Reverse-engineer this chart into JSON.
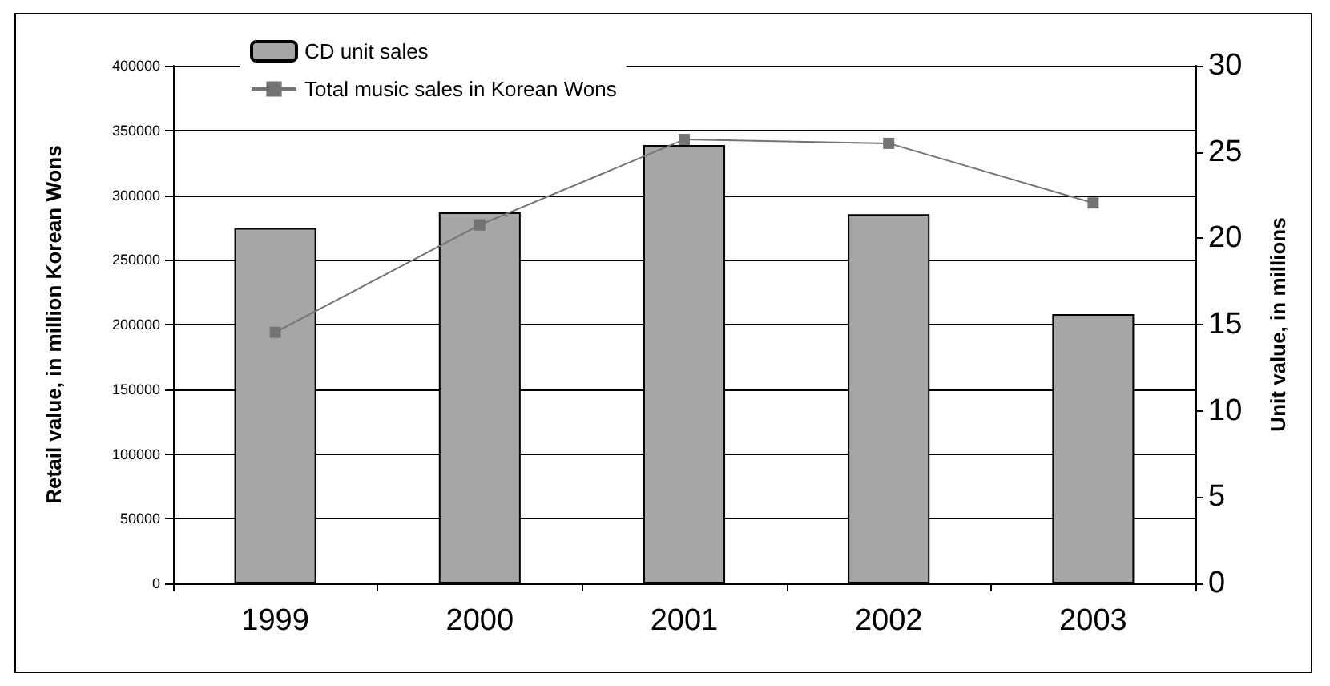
{
  "chart_data": {
    "type": "bar",
    "categories": [
      "1999",
      "2000",
      "2001",
      "2002",
      "2003"
    ],
    "series": [
      {
        "name": "CD unit sales",
        "axis": "y2",
        "color": "#a6a6a6",
        "values": [
          20.6,
          21.5,
          25.4,
          21.4,
          15.6
        ]
      },
      {
        "name": "Total music sales in Korean Wons",
        "type": "line",
        "axis": "y",
        "color": "#737373",
        "marker": "square",
        "values": [
          194000,
          277000,
          343000,
          340000,
          294000
        ]
      }
    ],
    "ylabel": "Retail value, in million Korean Wons",
    "y2label": "Unit value, in millions",
    "ylim": [
      0,
      400000
    ],
    "yticks": [
      0,
      50000,
      100000,
      150000,
      200000,
      250000,
      300000,
      350000,
      400000
    ],
    "y2lim": [
      0,
      30
    ],
    "y2ticks": [
      0,
      5,
      10,
      15,
      20,
      25,
      30
    ],
    "grid": "y",
    "legend": "top left"
  }
}
